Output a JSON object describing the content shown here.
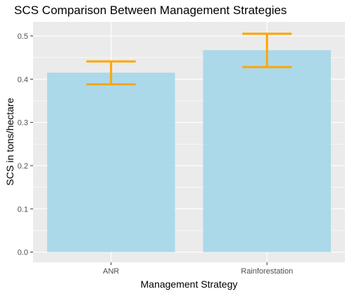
{
  "chart_data": {
    "type": "bar",
    "title": "SCS Comparison Between Management Strategies",
    "xlabel": "Management Strategy",
    "ylabel": "SCS in tons/hectare",
    "categories": [
      "ANR",
      "Rainforestation"
    ],
    "values": [
      0.415,
      0.467
    ],
    "error_bars": [
      {
        "lower": 0.388,
        "upper": 0.441
      },
      {
        "lower": 0.428,
        "upper": 0.505
      }
    ],
    "ylim": [
      -0.0235,
      0.5325
    ],
    "yticks": [
      0.0,
      0.1,
      0.2,
      0.3,
      0.4,
      0.5
    ],
    "ytick_labels": [
      "0.0",
      "0.1",
      "0.2",
      "0.3",
      "0.4",
      "0.5"
    ],
    "grid": true,
    "colors": {
      "bar_fill": "#a8d8ea",
      "error_bar": "#ffa500",
      "panel_background": "#ebebeb",
      "grid_line": "#ffffff"
    }
  }
}
